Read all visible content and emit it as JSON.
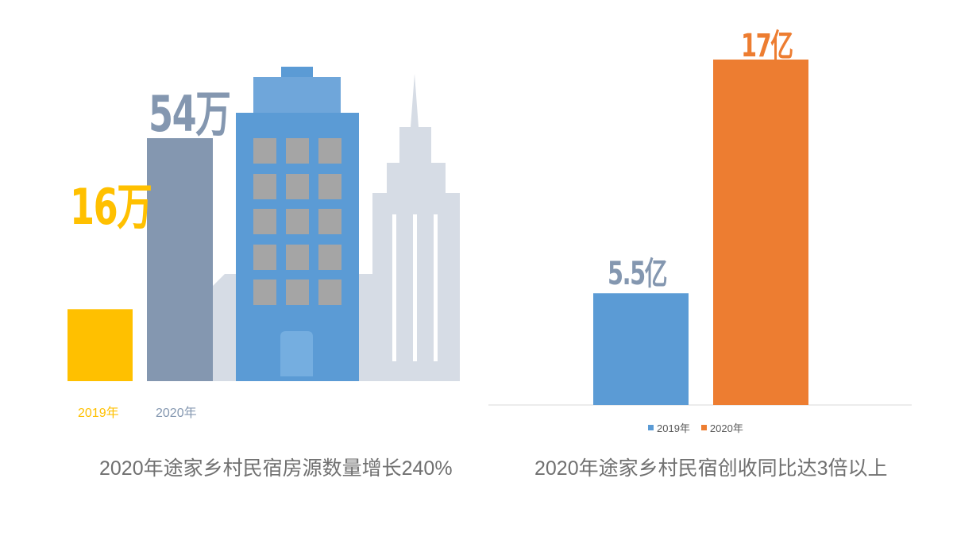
{
  "colors": {
    "yellow": "#FFC000",
    "slate": "#8497B0",
    "blue": "#5B9BD5",
    "orange": "#ED7D31",
    "caption": "#707070",
    "building_light": "#D6DCE5",
    "window_gray": "#A5A5A5"
  },
  "chart_data": [
    {
      "type": "bar",
      "categories": [
        "2019年",
        "2020年"
      ],
      "values": [
        16,
        54
      ],
      "unit": "万",
      "data_labels": [
        "16万",
        "54万"
      ],
      "title": "2020年途家乡村民宿房源数量增长240%",
      "decoration": "city-buildings-illustration"
    },
    {
      "type": "bar",
      "categories": [
        "2019年",
        "2020年"
      ],
      "values": [
        5.5,
        17
      ],
      "unit": "亿",
      "data_labels": [
        "5.5亿",
        "17亿"
      ],
      "legend": [
        "2019年",
        "2020年"
      ],
      "legend_position": "bottom",
      "title": "2020年途家乡村民宿创收同比达3倍以上"
    }
  ]
}
